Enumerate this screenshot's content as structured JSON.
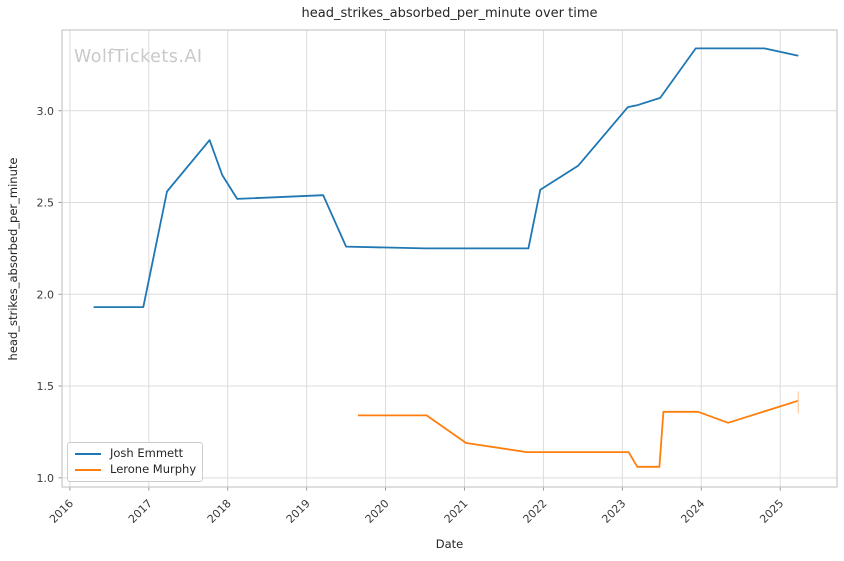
{
  "watermark": {
    "text": "WolfTickets.AI",
    "color": "#c9c9c9"
  },
  "chart_data": {
    "type": "line",
    "title": "head_strikes_absorbed_per_minute over time",
    "xlabel": "Date",
    "ylabel": "head_strikes_absorbed_per_minute",
    "x_tick_labels": [
      "2016",
      "2017",
      "2018",
      "2019",
      "2020",
      "2021",
      "2022",
      "2023",
      "2024",
      "2025"
    ],
    "x_tick_values": [
      2016,
      2017,
      2018,
      2019,
      2020,
      2021,
      2022,
      2023,
      2024,
      2025
    ],
    "y_tick_labels": [
      "1.0",
      "1.5",
      "2.0",
      "2.5",
      "3.0"
    ],
    "y_tick_values": [
      1.0,
      1.5,
      2.0,
      2.5,
      3.0
    ],
    "xlim": [
      2015.9,
      2025.72
    ],
    "ylim": [
      0.95,
      3.44
    ],
    "grid": true,
    "legend_position": "lower-left",
    "series": [
      {
        "name": "Josh Emmett",
        "color": "#1f77b4",
        "points": [
          [
            2016.3,
            1.93
          ],
          [
            2016.93,
            1.93
          ],
          [
            2017.23,
            2.56
          ],
          [
            2017.77,
            2.84
          ],
          [
            2017.93,
            2.65
          ],
          [
            2018.12,
            2.52
          ],
          [
            2019.21,
            2.54
          ],
          [
            2019.5,
            2.26
          ],
          [
            2020.5,
            2.25
          ],
          [
            2021.81,
            2.25
          ],
          [
            2021.96,
            2.57
          ],
          [
            2022.44,
            2.7
          ],
          [
            2023.07,
            3.02
          ],
          [
            2023.19,
            3.03
          ],
          [
            2023.48,
            3.07
          ],
          [
            2023.93,
            3.34
          ],
          [
            2024.8,
            3.34
          ],
          [
            2025.23,
            3.3
          ]
        ]
      },
      {
        "name": "Lerone Murphy",
        "color": "#ff7f0e",
        "points": [
          [
            2019.65,
            1.34
          ],
          [
            2020.52,
            1.34
          ],
          [
            2021.02,
            1.19
          ],
          [
            2021.79,
            1.14
          ],
          [
            2023.08,
            1.14
          ],
          [
            2023.19,
            1.06
          ],
          [
            2023.47,
            1.06
          ],
          [
            2023.52,
            1.36
          ],
          [
            2023.96,
            1.36
          ],
          [
            2024.34,
            1.3
          ],
          [
            2025.23,
            1.42
          ]
        ],
        "end_marker": {
          "x": 2025.23,
          "y_low": 1.35,
          "y_high": 1.47,
          "color": "#ffd2ab"
        }
      }
    ],
    "style": {
      "grid_color": "#dcdcdc",
      "spine_color": "#c9c9c9",
      "tick_color": "#8f8f8f",
      "tick_label_color": "#3a3a3a",
      "line_width": 1.8
    }
  }
}
